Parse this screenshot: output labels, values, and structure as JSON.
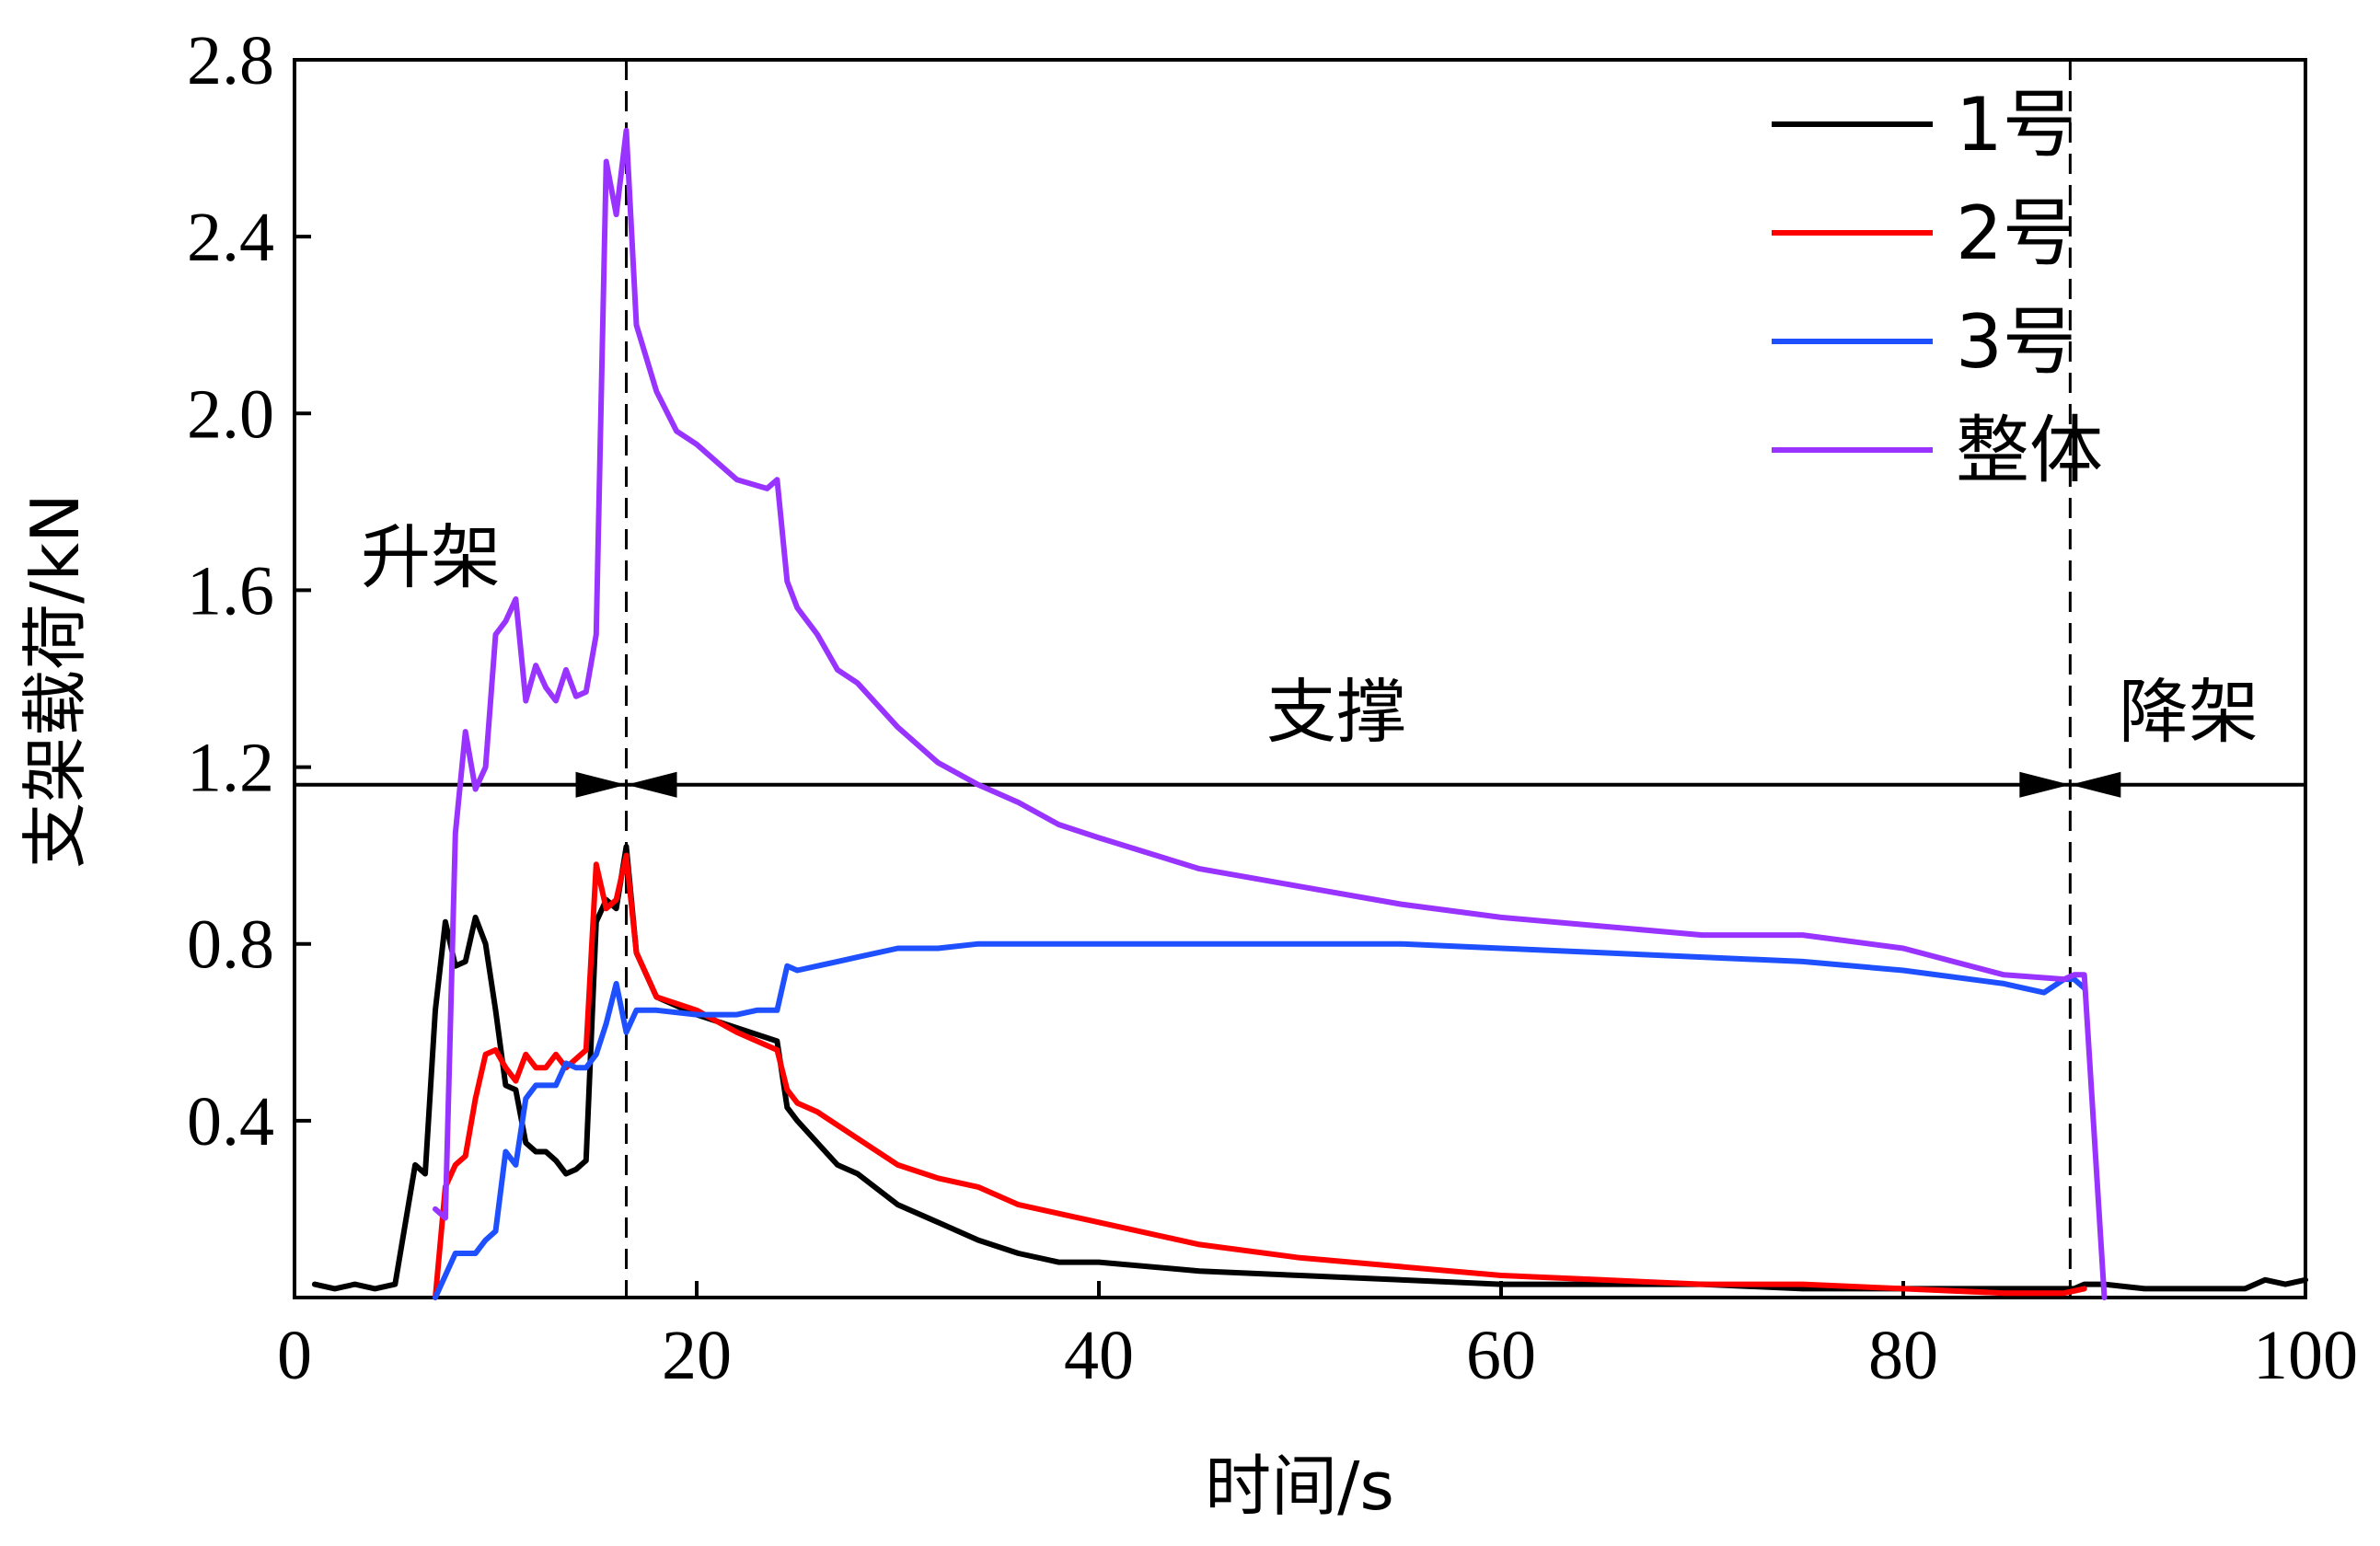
{
  "chart_data": {
    "type": "line",
    "title": "",
    "xlabel": "时间/s",
    "ylabel": "支架载荷/kN",
    "xlim": [
      0,
      100
    ],
    "ylim": [
      0,
      2.8
    ],
    "x_ticks": [
      0,
      20,
      40,
      60,
      80,
      100
    ],
    "x_tick_labels": [
      "0",
      "20",
      "40",
      "60",
      "80",
      "100"
    ],
    "y_ticks": [
      0.4,
      0.8,
      1.2,
      1.6,
      2.0,
      2.4,
      2.8
    ],
    "y_tick_labels": [
      "0.4",
      "0.8",
      "1.2",
      "1.6",
      "2.0",
      "2.4",
      "2.8"
    ],
    "legend_position": "top-right",
    "colors": {
      "1号": "#000000",
      "2号": "#ff0000",
      "3号": "#1e50ff",
      "整体": "#9933ff"
    },
    "phases": [
      {
        "label": "升架",
        "x_end": 16.5
      },
      {
        "label": "支撑",
        "x_start": 16.5,
        "x_end": 88.3
      },
      {
        "label": "降架",
        "x_start": 88.3
      }
    ],
    "phase_boundaries": [
      16.5,
      88.3
    ],
    "phase_line_y": 1.16,
    "series": [
      {
        "name": "1号",
        "x": [
          1,
          2,
          3,
          4,
          5,
          6,
          6.5,
          7,
          7.5,
          8,
          8.5,
          9,
          9.5,
          10,
          10.5,
          11,
          11.5,
          12,
          12.5,
          13,
          13.5,
          14,
          14.5,
          15,
          15.5,
          16,
          16.5,
          17,
          18,
          20,
          22,
          24,
          24.5,
          25,
          26,
          27,
          28,
          30,
          32,
          34,
          36,
          38,
          40,
          45,
          50,
          55,
          60,
          65,
          70,
          75,
          80,
          85,
          88.5,
          89,
          90,
          92,
          95,
          97,
          98,
          99,
          100
        ],
        "values": [
          0.03,
          0.02,
          0.03,
          0.02,
          0.03,
          0.3,
          0.28,
          0.65,
          0.85,
          0.75,
          0.76,
          0.86,
          0.8,
          0.65,
          0.48,
          0.47,
          0.35,
          0.33,
          0.33,
          0.31,
          0.28,
          0.29,
          0.31,
          0.85,
          0.9,
          0.88,
          1.02,
          0.78,
          0.68,
          0.64,
          0.61,
          0.58,
          0.43,
          0.4,
          0.35,
          0.3,
          0.28,
          0.21,
          0.17,
          0.13,
          0.1,
          0.08,
          0.08,
          0.06,
          0.05,
          0.04,
          0.03,
          0.03,
          0.03,
          0.02,
          0.02,
          0.02,
          0.02,
          0.03,
          0.03,
          0.02,
          0.02,
          0.02,
          0.04,
          0.03,
          0.04
        ]
      },
      {
        "name": "2号",
        "x": [
          7,
          7.5,
          8,
          8.5,
          9,
          9.5,
          10,
          10.5,
          11,
          11.5,
          12,
          12.5,
          13,
          13.5,
          14,
          14.5,
          15,
          15.5,
          16,
          16.5,
          17,
          18,
          20,
          22,
          24,
          24.5,
          25,
          26,
          28,
          30,
          32,
          34,
          36,
          38,
          40,
          45,
          50,
          55,
          60,
          65,
          70,
          75,
          80,
          85,
          88,
          89
        ],
        "values": [
          0.0,
          0.25,
          0.3,
          0.32,
          0.45,
          0.55,
          0.56,
          0.52,
          0.49,
          0.55,
          0.52,
          0.52,
          0.55,
          0.52,
          0.54,
          0.56,
          0.98,
          0.88,
          0.9,
          1.0,
          0.78,
          0.68,
          0.65,
          0.6,
          0.56,
          0.47,
          0.44,
          0.42,
          0.36,
          0.3,
          0.27,
          0.25,
          0.21,
          0.19,
          0.17,
          0.12,
          0.09,
          0.07,
          0.05,
          0.04,
          0.03,
          0.03,
          0.02,
          0.01,
          0.01,
          0.02
        ]
      },
      {
        "name": "3号",
        "x": [
          7,
          8,
          9,
          9.5,
          10,
          10.5,
          11,
          11.5,
          12,
          12.5,
          13,
          13.5,
          14,
          14.5,
          15,
          15.5,
          16,
          16.5,
          17,
          18,
          20,
          22,
          23,
          24,
          24.5,
          25,
          26,
          27,
          28,
          30,
          32,
          34,
          36,
          38,
          40,
          45,
          50,
          55,
          60,
          65,
          70,
          75,
          80,
          85,
          86,
          87,
          88,
          88.5,
          89
        ],
        "values": [
          0.0,
          0.1,
          0.1,
          0.13,
          0.15,
          0.33,
          0.3,
          0.45,
          0.48,
          0.48,
          0.48,
          0.53,
          0.52,
          0.52,
          0.55,
          0.62,
          0.71,
          0.6,
          0.65,
          0.65,
          0.64,
          0.64,
          0.65,
          0.65,
          0.75,
          0.74,
          0.75,
          0.76,
          0.77,
          0.79,
          0.79,
          0.8,
          0.8,
          0.8,
          0.8,
          0.8,
          0.8,
          0.8,
          0.79,
          0.78,
          0.77,
          0.76,
          0.74,
          0.71,
          0.7,
          0.69,
          0.72,
          0.72,
          0.7
        ]
      },
      {
        "name": "整体",
        "x": [
          7,
          7.5,
          8,
          8.5,
          9,
          9.5,
          10,
          10.5,
          11,
          11.5,
          12,
          12.5,
          13,
          13.5,
          14,
          14.5,
          15,
          15.5,
          16,
          16.5,
          17,
          18,
          19,
          20,
          22,
          23.5,
          24,
          24.5,
          25,
          26,
          27,
          28,
          30,
          32,
          34,
          36,
          38,
          40,
          45,
          50,
          55,
          60,
          65,
          70,
          75,
          80,
          85,
          88,
          88.5,
          89,
          90
        ],
        "values": [
          0.2,
          0.18,
          1.05,
          1.28,
          1.15,
          1.2,
          1.5,
          1.53,
          1.58,
          1.35,
          1.43,
          1.38,
          1.35,
          1.42,
          1.36,
          1.37,
          1.5,
          2.57,
          2.45,
          2.64,
          2.2,
          2.05,
          1.96,
          1.93,
          1.85,
          1.83,
          1.85,
          1.62,
          1.56,
          1.5,
          1.42,
          1.39,
          1.29,
          1.21,
          1.16,
          1.12,
          1.07,
          1.04,
          0.97,
          0.93,
          0.89,
          0.86,
          0.84,
          0.82,
          0.82,
          0.79,
          0.73,
          0.72,
          0.73,
          0.73,
          0.0
        ]
      }
    ]
  }
}
